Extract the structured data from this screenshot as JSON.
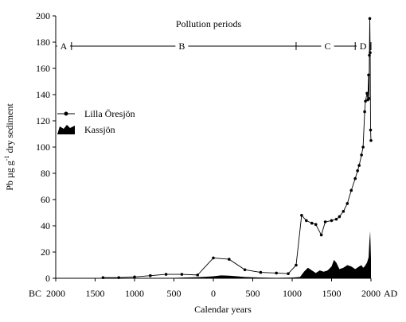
{
  "chart_data": {
    "type": "line",
    "xlabel": "Calendar years",
    "ylabel": {
      "base": "Pb µg g",
      "sup": "-1",
      "tail": " dry sediment"
    },
    "x_prefix": "BC",
    "x_suffix": "AD",
    "xlim": [
      -2000,
      2000
    ],
    "ylim": [
      0,
      200
    ],
    "x_ticks": [
      -2000,
      -1500,
      -1000,
      -500,
      0,
      500,
      1000,
      1500,
      2000
    ],
    "x_tick_labels": [
      "2000",
      "1500",
      "1000",
      "500",
      "0",
      "500",
      "1000",
      "1500",
      "2000"
    ],
    "y_ticks": [
      0,
      20,
      40,
      60,
      80,
      100,
      120,
      140,
      160,
      180,
      200
    ],
    "y_tick_labels": [
      "0",
      "20",
      "40",
      "60",
      "80",
      "100",
      "120",
      "140",
      "160",
      "180",
      "200"
    ],
    "grid": false,
    "legend_position": "left",
    "pollution_periods": {
      "title": "Pollution periods",
      "y": 177,
      "boundaries": [
        -2000,
        -1800,
        1050,
        1800,
        2000
      ],
      "periods": [
        {
          "label": "A",
          "x": -1900
        },
        {
          "label": "B",
          "x": -400
        },
        {
          "label": "C",
          "x": 1450
        },
        {
          "label": "D",
          "x": 1900
        }
      ]
    },
    "series": [
      {
        "name": "Lilla Öresjön",
        "style": "line-markers",
        "color": "#000000",
        "x": [
          -1400,
          -1200,
          -1000,
          -800,
          -600,
          -400,
          -200,
          0,
          200,
          400,
          600,
          800,
          950,
          1050,
          1120,
          1180,
          1250,
          1300,
          1370,
          1420,
          1500,
          1560,
          1600,
          1650,
          1700,
          1750,
          1800,
          1830,
          1850,
          1880,
          1900,
          1920,
          1930,
          1950,
          1960,
          1970,
          1975,
          1980,
          1985,
          1990,
          1995,
          2000
        ],
        "y": [
          0.5,
          0.5,
          1,
          2,
          3,
          3,
          2.5,
          15.5,
          14.5,
          6.5,
          4.5,
          4,
          3.5,
          10,
          48,
          44,
          42,
          41,
          33,
          43,
          44,
          45,
          47,
          51,
          57,
          67,
          76,
          82,
          86,
          94,
          100,
          127,
          135,
          141,
          136,
          155,
          137,
          170,
          198,
          172,
          113,
          105
        ]
      },
      {
        "name": "Kassjön",
        "style": "filled-area",
        "color": "#000000",
        "x": [
          -2000,
          -1000,
          -500,
          -200,
          0,
          100,
          200,
          300,
          400,
          600,
          800,
          1000,
          1100,
          1150,
          1200,
          1250,
          1300,
          1350,
          1400,
          1450,
          1500,
          1530,
          1560,
          1600,
          1650,
          1700,
          1750,
          1800,
          1850,
          1880,
          1900,
          1920,
          1950,
          1970,
          1980,
          1990,
          2000
        ],
        "y": [
          0,
          0,
          0.3,
          0.8,
          1.5,
          2.2,
          2,
          1.5,
          1,
          0.5,
          0.3,
          0.5,
          1,
          5,
          8,
          6,
          4,
          6,
          5,
          6,
          9,
          14,
          12,
          7,
          8,
          10,
          9,
          7,
          9,
          10,
          8,
          9,
          12,
          16,
          28,
          36,
          15
        ]
      }
    ]
  }
}
